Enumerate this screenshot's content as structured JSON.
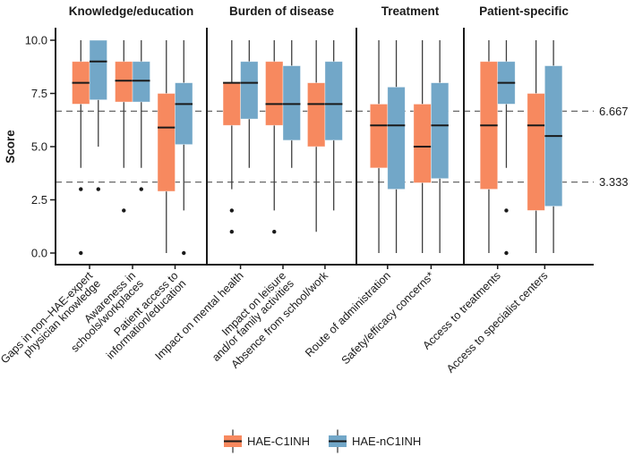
{
  "chart_data": {
    "type": "grouped-boxplot",
    "ylabel": "Score",
    "ylim": [
      0,
      10
    ],
    "yticks": [
      "0.0",
      "2.5",
      "5.0",
      "7.5",
      "10.0"
    ],
    "ytick_values": [
      0,
      2.5,
      5,
      7.5,
      10
    ],
    "grid": "off",
    "legend_position": "bottom",
    "reference_lines": [
      {
        "value": 6.667,
        "label": "6.667",
        "style": "dashed"
      },
      {
        "value": 3.333,
        "label": "3.333",
        "style": "dashed"
      }
    ],
    "legend": [
      {
        "name": "HAE-C1INH",
        "color": "#F7895F"
      },
      {
        "name": "HAE-nC1INH",
        "color": "#72A7C8"
      }
    ],
    "style_colors": {
      "median": "#1a1a1a",
      "whisker": "#3f3f3f",
      "axis": "#1a1a1a",
      "reference": "#555555"
    },
    "panels": [
      {
        "title": "Knowledge/education",
        "categories": [
          {
            "label_lines": [
              "Gaps in non–HAE-expert",
              "physician knowledge"
            ],
            "boxes": [
              {
                "series": "HAE-C1INH",
                "low": 4.0,
                "q1": 7.0,
                "median": 8.0,
                "q3": 9.0,
                "high": 10.0,
                "outliers": [
                  3.0,
                  0.0
                ]
              },
              {
                "series": "HAE-nC1INH",
                "low": 5.0,
                "q1": 7.2,
                "median": 9.0,
                "q3": 10.0,
                "high": 10.0,
                "outliers": [
                  3.0
                ]
              }
            ]
          },
          {
            "label_lines": [
              "Awareness in",
              "schools/workplaces"
            ],
            "boxes": [
              {
                "series": "HAE-C1INH",
                "low": 4.0,
                "q1": 7.1,
                "median": 8.1,
                "q3": 9.0,
                "high": 10.0,
                "outliers": [
                  2.0
                ]
              },
              {
                "series": "HAE-nC1INH",
                "low": 4.0,
                "q1": 7.1,
                "median": 8.1,
                "q3": 9.0,
                "high": 10.0,
                "outliers": [
                  3.0
                ]
              }
            ]
          },
          {
            "label_lines": [
              "Patient access to",
              "information/education"
            ],
            "boxes": [
              {
                "series": "HAE-C1INH",
                "low": 0.0,
                "q1": 2.9,
                "median": 5.9,
                "q3": 7.5,
                "high": 10.0,
                "outliers": []
              },
              {
                "series": "HAE-nC1INH",
                "low": 2.0,
                "q1": 5.1,
                "median": 7.0,
                "q3": 8.0,
                "high": 10.0,
                "outliers": [
                  0.0
                ]
              }
            ]
          }
        ]
      },
      {
        "title": "Burden of disease",
        "categories": [
          {
            "label_lines": [
              "Impact on mental health"
            ],
            "boxes": [
              {
                "series": "HAE-C1INH",
                "low": 3.0,
                "q1": 6.0,
                "median": 8.0,
                "q3": 8.0,
                "high": 10.0,
                "outliers": [
                  2.0,
                  1.0
                ]
              },
              {
                "series": "HAE-nC1INH",
                "low": 4.0,
                "q1": 6.3,
                "median": 8.0,
                "q3": 9.0,
                "high": 10.0,
                "outliers": []
              }
            ]
          },
          {
            "label_lines": [
              "Impact on leisure",
              "and/or family activities"
            ],
            "boxes": [
              {
                "series": "HAE-C1INH",
                "low": 2.0,
                "q1": 6.0,
                "median": 7.0,
                "q3": 9.0,
                "high": 10.0,
                "outliers": [
                  1.0
                ]
              },
              {
                "series": "HAE-nC1INH",
                "low": 4.0,
                "q1": 5.3,
                "median": 7.0,
                "q3": 8.8,
                "high": 10.0,
                "outliers": []
              }
            ]
          },
          {
            "label_lines": [
              "Absence from school/work"
            ],
            "boxes": [
              {
                "series": "HAE-C1INH",
                "low": 1.0,
                "q1": 5.0,
                "median": 7.0,
                "q3": 8.0,
                "high": 10.0,
                "outliers": []
              },
              {
                "series": "HAE-nC1INH",
                "low": 2.0,
                "q1": 5.3,
                "median": 7.0,
                "q3": 9.0,
                "high": 10.0,
                "outliers": []
              }
            ]
          }
        ]
      },
      {
        "title": "Treatment",
        "categories": [
          {
            "label_lines": [
              "Route of administration"
            ],
            "boxes": [
              {
                "series": "HAE-C1INH",
                "low": 0.0,
                "q1": 4.0,
                "median": 6.0,
                "q3": 7.0,
                "high": 10.0,
                "outliers": []
              },
              {
                "series": "HAE-nC1INH",
                "low": 0.0,
                "q1": 3.0,
                "median": 6.0,
                "q3": 7.8,
                "high": 10.0,
                "outliers": []
              }
            ]
          },
          {
            "label_lines": [
              "Safety/efficacy concerns*"
            ],
            "boxes": [
              {
                "series": "HAE-C1INH",
                "low": 0.0,
                "q1": 3.3,
                "median": 5.0,
                "q3": 7.0,
                "high": 10.0,
                "outliers": []
              },
              {
                "series": "HAE-nC1INH",
                "low": 0.0,
                "q1": 3.5,
                "median": 6.0,
                "q3": 8.0,
                "high": 10.0,
                "outliers": []
              }
            ]
          }
        ]
      },
      {
        "title": "Patient-specific",
        "categories": [
          {
            "label_lines": [
              "Access to treatments"
            ],
            "boxes": [
              {
                "series": "HAE-C1INH",
                "low": 0.0,
                "q1": 3.0,
                "median": 6.0,
                "q3": 9.0,
                "high": 10.0,
                "outliers": []
              },
              {
                "series": "HAE-nC1INH",
                "low": 4.0,
                "q1": 7.0,
                "median": 8.0,
                "q3": 9.0,
                "high": 10.0,
                "outliers": [
                  2.0,
                  0.0
                ]
              }
            ]
          },
          {
            "label_lines": [
              "Access to specialist centers"
            ],
            "boxes": [
              {
                "series": "HAE-C1INH",
                "low": 0.0,
                "q1": 2.0,
                "median": 6.0,
                "q3": 7.5,
                "high": 10.0,
                "outliers": []
              },
              {
                "series": "HAE-nC1INH",
                "low": 0.0,
                "q1": 2.2,
                "median": 5.5,
                "q3": 8.8,
                "high": 10.0,
                "outliers": []
              }
            ]
          }
        ]
      }
    ]
  }
}
